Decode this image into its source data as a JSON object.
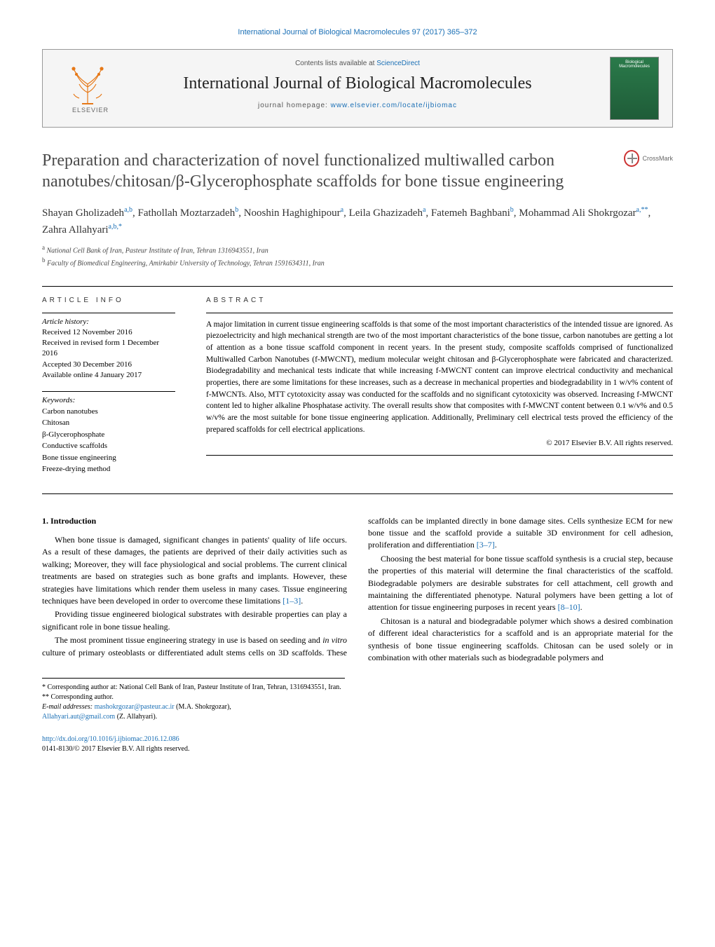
{
  "running_head": "International Journal of Biological Macromolecules 97 (2017) 365–372",
  "masthead": {
    "contents_prefix": "Contents lists available at ",
    "contents_link": "ScienceDirect",
    "journal_name": "International Journal of Biological Macromolecules",
    "homepage_prefix": "journal homepage: ",
    "homepage_url": "www.elsevier.com/locate/ijbiomac",
    "publisher": "ELSEVIER",
    "cover_text": "Biological Macromolecules"
  },
  "crossmark_label": "CrossMark",
  "title": "Preparation and characterization of novel functionalized multiwalled carbon nanotubes/chitosan/β-Glycerophosphate scaffolds for bone tissue engineering",
  "authors_html": "Shayan Gholizadeh<sup>a,b</sup>, Fathollah Moztarzadeh<sup>b</sup>, Nooshin Haghighipour<sup>a</sup>, Leila Ghazizadeh<sup>a</sup>, Fatemeh Baghbani<sup>b</sup>, Mohammad Ali Shokrgozar<sup>a,**</sup>, Zahra Allahyari<sup>a,b,*</sup>",
  "affiliations": {
    "a": "National Cell Bank of Iran, Pasteur Institute of Iran, Tehran 1316943551, Iran",
    "b": "Faculty of Biomedical Engineering, Amirkabir University of Technology, Tehran 1591634311, Iran"
  },
  "info": {
    "heading": "article info",
    "history_label": "Article history:",
    "history": [
      "Received 12 November 2016",
      "Received in revised form 1 December 2016",
      "Accepted 30 December 2016",
      "Available online 4 January 2017"
    ],
    "keywords_label": "Keywords:",
    "keywords": [
      "Carbon nanotubes",
      "Chitosan",
      "β-Glycerophosphate",
      "Conductive scaffolds",
      "Bone tissue engineering",
      "Freeze-drying method"
    ]
  },
  "abstract": {
    "heading": "abstract",
    "text": "A major limitation in current tissue engineering scaffolds is that some of the most important characteristics of the intended tissue are ignored. As piezoelectricity and high mechanical strength are two of the most important characteristics of the bone tissue, carbon nanotubes are getting a lot of attention as a bone tissue scaffold component in recent years. In the present study, composite scaffolds comprised of functionalized Multiwalled Carbon Nanotubes (f-MWCNT), medium molecular weight chitosan and β-Glycerophosphate were fabricated and characterized. Biodegradability and mechanical tests indicate that while increasing f-MWCNT content can improve electrical conductivity and mechanical properties, there are some limitations for these increases, such as a decrease in mechanical properties and biodegradability in 1 w/v% content of f-MWCNTs. Also, MTT cytotoxicity assay was conducted for the scaffolds and no significant cytotoxicity was observed. Increasing f-MWCNT content led to higher alkaline Phosphatase activity. The overall results show that composites with f-MWCNT content between 0.1 w/v% and 0.5 w/v% are the most suitable for bone tissue engineering application. Additionally, Preliminary cell electrical tests proved the efficiency of the prepared scaffolds for cell electrical applications.",
    "copyright": "© 2017 Elsevier B.V. All rights reserved."
  },
  "sections": {
    "intro_heading": "1.  Introduction",
    "p1": "When bone tissue is damaged, significant changes in patients' quality of life occurs. As a result of these damages, the patients are deprived of their daily activities such as walking; Moreover, they will face physiological and social problems. The current clinical treatments are based on strategies such as bone grafts and implants. However, these strategies have limitations which render them useless in many cases. Tissue engineering techniques have been developed in order to overcome these limitations ",
    "p1_ref": "[1–3]",
    "p2": "Providing tissue engineered biological substrates with desirable properties can play a significant role in bone tissue healing.",
    "p3a": "The most prominent tissue engineering strategy in use is based on seeding and ",
    "p3b": "in vitro",
    "p3c": " culture of primary osteoblasts or differentiated adult stems cells on 3D scaffolds. These scaffolds can be implanted directly in bone damage sites. Cells synthesize ECM for new bone tissue and the scaffold provide a suitable 3D environment for cell adhesion, proliferation and differentiation ",
    "p3_ref": "[3–7]",
    "p4": "Choosing the best material for bone tissue scaffold synthesis is a crucial step, because the properties of this material will determine the final characteristics of the scaffold. Biodegradable polymers are desirable substrates for cell attachment, cell growth and maintaining the differentiated phenotype. Natural polymers have been getting a lot of attention for tissue engineering purposes in recent years ",
    "p4_ref": "[8–10]",
    "p5": "Chitosan is a natural and biodegradable polymer which shows a desired combination of different ideal characteristics for a scaffold and is an appropriate material for the synthesis of bone tissue engineering scaffolds. Chitosan can be used solely or in combination with other materials such as biodegradable polymers and"
  },
  "footnotes": {
    "corr1": "* Corresponding author at: National Cell Bank of Iran, Pasteur Institute of Iran, Tehran, 1316943551, Iran.",
    "corr2": "** Corresponding author.",
    "email_label": "E-mail addresses: ",
    "email1": "mashokrgozar@pasteur.ac.ir",
    "email1_who": " (M.A. Shokrgozar),",
    "email2": "Allahyari.aut@gmail.com",
    "email2_who": " (Z. Allahyari)."
  },
  "doi": {
    "url": "http://dx.doi.org/10.1016/j.ijbiomac.2016.12.086",
    "issn_line": "0141-8130/© 2017 Elsevier B.V. All rights reserved."
  },
  "colors": {
    "link": "#1a6fb5",
    "elsevier_orange": "#e67817"
  }
}
